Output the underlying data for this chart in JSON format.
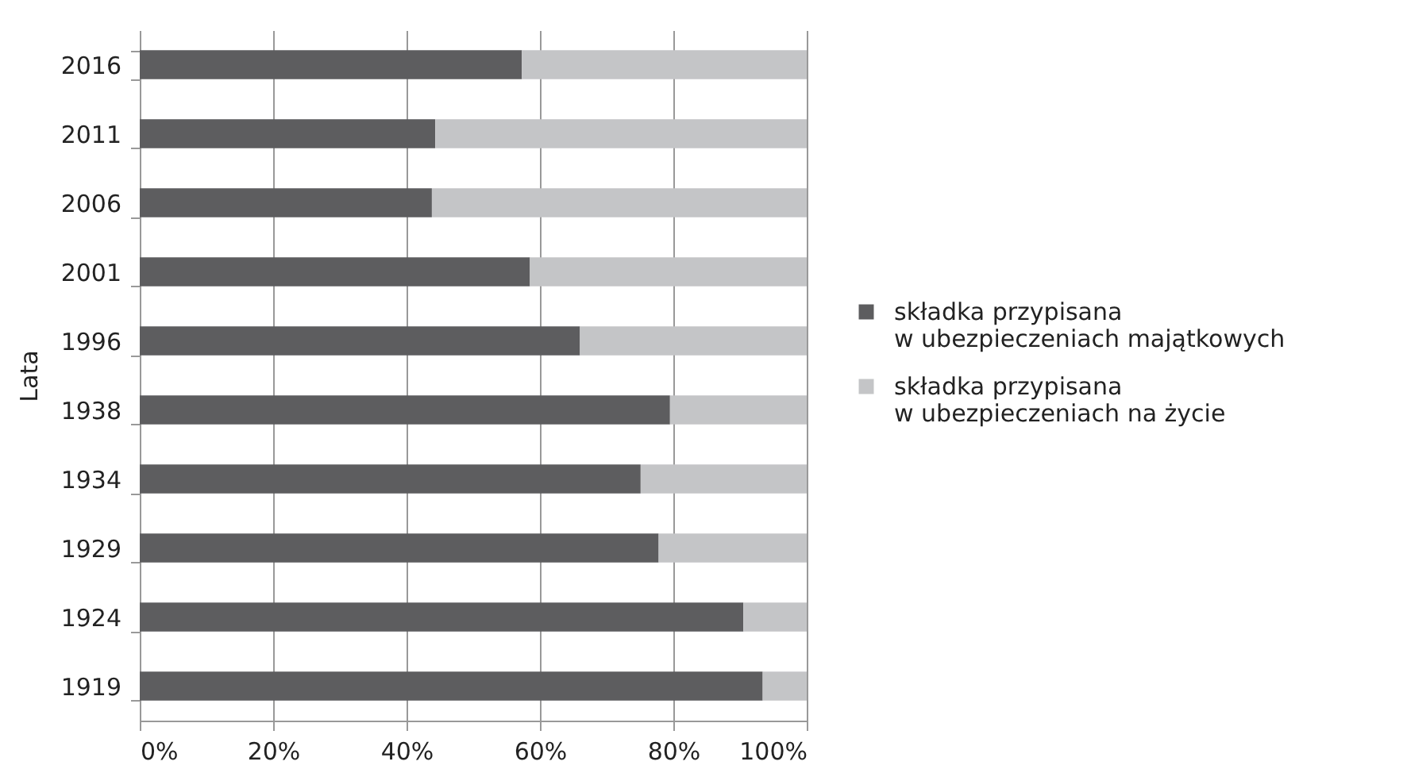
{
  "chart_data": {
    "type": "bar",
    "orientation": "horizontal",
    "stacked": true,
    "ylabel": "Lata",
    "categories": [
      "2016",
      "2011",
      "2006",
      "2001",
      "1996",
      "1938",
      "1934",
      "1929",
      "1924",
      "1919"
    ],
    "series": [
      {
        "name": "składka przypisana\nw ubezpieczeniach majątkowych",
        "color": "#5d5d5f",
        "values": [
          57.3,
          44.3,
          43.8,
          58.5,
          66.0,
          79.5,
          75.1,
          77.8,
          90.5,
          93.4
        ]
      },
      {
        "name": "składka przypisana\nw ubezpieczeniach na życie",
        "color": "#c4c5c7",
        "values": [
          42.7,
          55.7,
          56.2,
          41.5,
          34.0,
          20.5,
          24.9,
          22.2,
          9.5,
          6.6
        ]
      }
    ],
    "xlim": [
      0,
      100
    ],
    "xticks": [
      {
        "value": 0,
        "label": "0%"
      },
      {
        "value": 20,
        "label": "20%"
      },
      {
        "value": 40,
        "label": "40%"
      },
      {
        "value": 60,
        "label": "60%"
      },
      {
        "value": 80,
        "label": "80%"
      },
      {
        "value": 100,
        "label": "100%"
      }
    ],
    "grid": "x",
    "legend": "right"
  }
}
